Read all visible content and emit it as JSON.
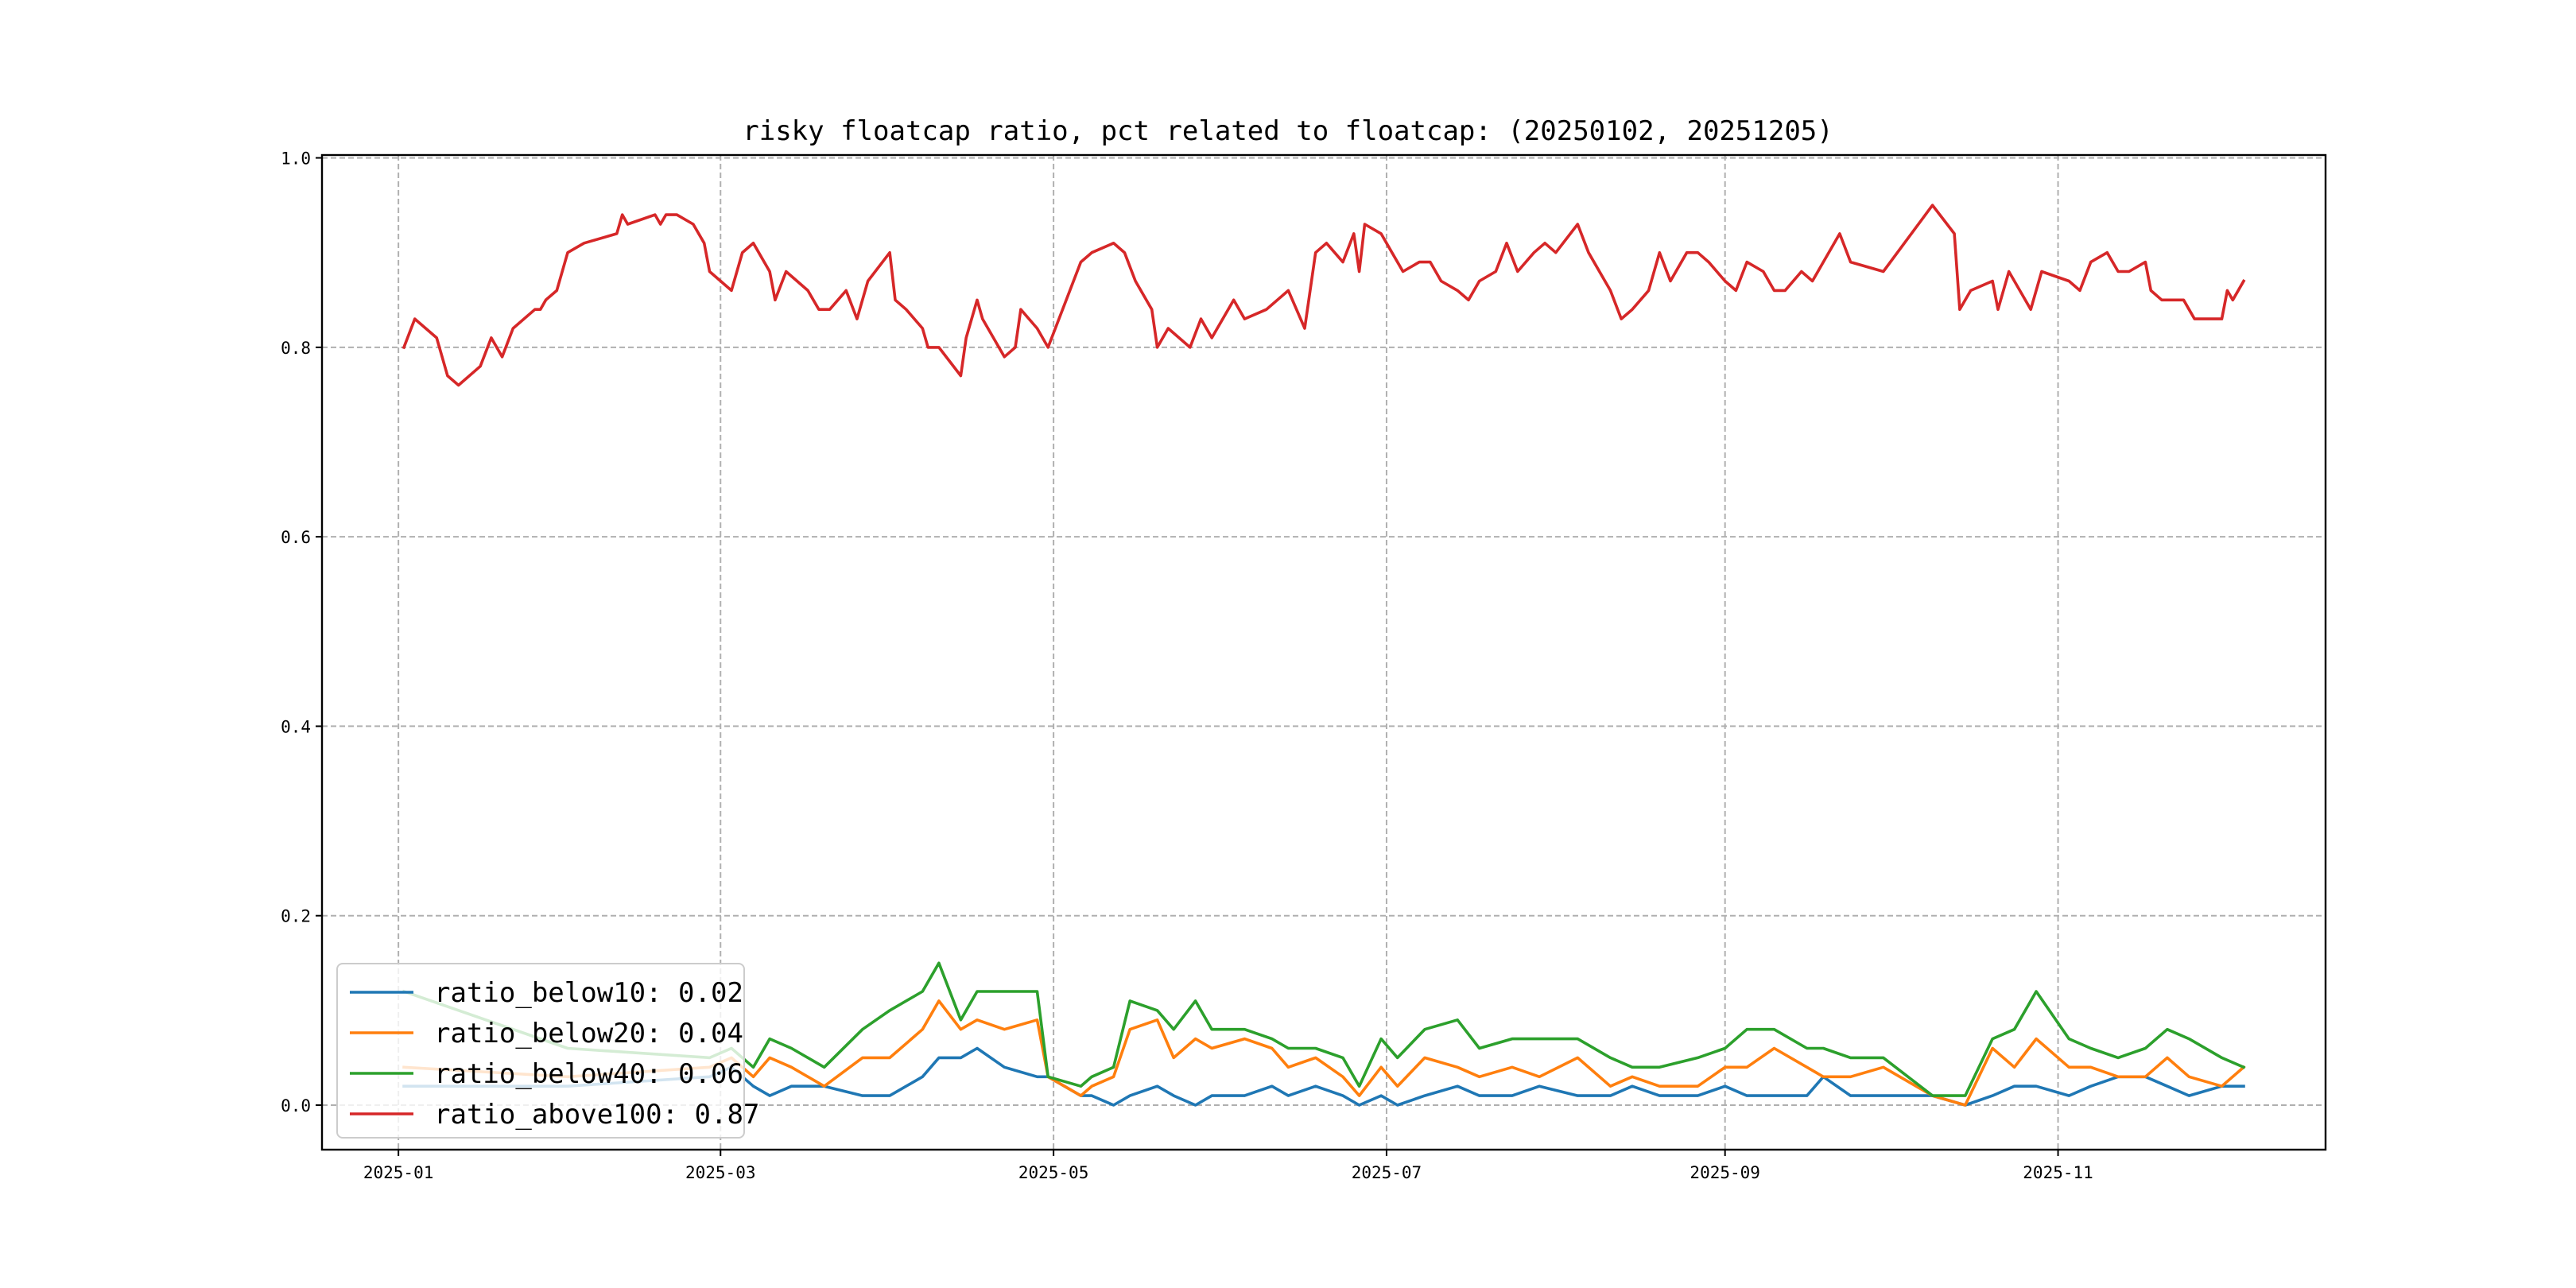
{
  "chart_data": {
    "type": "line",
    "title": "risky floatcap ratio, pct related to floatcap: (20250102, 20251205)",
    "xlabel": "",
    "ylabel": "",
    "x_type": "date",
    "xlim": [
      "2024-12-18",
      "2025-12-20"
    ],
    "ylim": [
      -0.047,
      1.003
    ],
    "x_ticks": [
      "2025-01-01",
      "2025-03-01",
      "2025-05-01",
      "2025-07-01",
      "2025-09-01",
      "2025-11-01"
    ],
    "x_tick_labels": [
      "2025-01",
      "2025-03",
      "2025-05",
      "2025-07",
      "2025-09",
      "2025-11"
    ],
    "y_ticks": [
      0.0,
      0.2,
      0.4,
      0.6,
      0.8,
      1.0
    ],
    "y_tick_labels": [
      "0.0",
      "0.2",
      "0.4",
      "0.6",
      "0.8",
      "1.0"
    ],
    "grid": true,
    "legend_position": "lower-left",
    "series": [
      {
        "name": "ratio_below10: 0.02",
        "color": "#1f77b4",
        "x": [
          "2025-01-02",
          "2025-02-01",
          "2025-02-27",
          "2025-03-03",
          "2025-03-07",
          "2025-03-10",
          "2025-03-14",
          "2025-03-20",
          "2025-03-27",
          "2025-04-01",
          "2025-04-07",
          "2025-04-10",
          "2025-04-14",
          "2025-04-17",
          "2025-04-22",
          "2025-04-28",
          "2025-04-30",
          "2025-05-06",
          "2025-05-08",
          "2025-05-12",
          "2025-05-15",
          "2025-05-20",
          "2025-05-23",
          "2025-05-27",
          "2025-05-30",
          "2025-06-05",
          "2025-06-10",
          "2025-06-13",
          "2025-06-18",
          "2025-06-23",
          "2025-06-26",
          "2025-06-30",
          "2025-07-03",
          "2025-07-08",
          "2025-07-14",
          "2025-07-18",
          "2025-07-24",
          "2025-07-29",
          "2025-08-05",
          "2025-08-11",
          "2025-08-15",
          "2025-08-20",
          "2025-08-27",
          "2025-09-01",
          "2025-09-05",
          "2025-09-10",
          "2025-09-16",
          "2025-09-19",
          "2025-09-24",
          "2025-09-30",
          "2025-10-09",
          "2025-10-15",
          "2025-10-20",
          "2025-10-24",
          "2025-10-28",
          "2025-11-03",
          "2025-11-07",
          "2025-11-12",
          "2025-11-17",
          "2025-11-21",
          "2025-11-25",
          "2025-12-01",
          "2025-12-05"
        ],
        "values": [
          0.02,
          0.02,
          0.03,
          0.04,
          0.02,
          0.01,
          0.02,
          0.02,
          0.01,
          0.01,
          0.03,
          0.05,
          0.05,
          0.06,
          0.04,
          0.03,
          0.03,
          0.01,
          0.01,
          0.0,
          0.01,
          0.02,
          0.01,
          0.0,
          0.01,
          0.01,
          0.02,
          0.01,
          0.02,
          0.01,
          0.0,
          0.01,
          0.0,
          0.01,
          0.02,
          0.01,
          0.01,
          0.02,
          0.01,
          0.01,
          0.02,
          0.01,
          0.01,
          0.02,
          0.01,
          0.01,
          0.01,
          0.03,
          0.01,
          0.01,
          0.01,
          0.0,
          0.01,
          0.02,
          0.02,
          0.01,
          0.02,
          0.03,
          0.03,
          0.02,
          0.01,
          0.02,
          0.02
        ]
      },
      {
        "name": "ratio_below20: 0.04",
        "color": "#ff7f0e",
        "x": [
          "2025-01-02",
          "2025-02-01",
          "2025-02-27",
          "2025-03-03",
          "2025-03-07",
          "2025-03-10",
          "2025-03-14",
          "2025-03-20",
          "2025-03-27",
          "2025-04-01",
          "2025-04-07",
          "2025-04-10",
          "2025-04-14",
          "2025-04-17",
          "2025-04-22",
          "2025-04-28",
          "2025-04-30",
          "2025-05-06",
          "2025-05-08",
          "2025-05-12",
          "2025-05-15",
          "2025-05-20",
          "2025-05-23",
          "2025-05-27",
          "2025-05-30",
          "2025-06-05",
          "2025-06-10",
          "2025-06-13",
          "2025-06-18",
          "2025-06-23",
          "2025-06-26",
          "2025-06-30",
          "2025-07-03",
          "2025-07-08",
          "2025-07-14",
          "2025-07-18",
          "2025-07-24",
          "2025-07-29",
          "2025-08-05",
          "2025-08-11",
          "2025-08-15",
          "2025-08-20",
          "2025-08-27",
          "2025-09-01",
          "2025-09-05",
          "2025-09-10",
          "2025-09-16",
          "2025-09-19",
          "2025-09-24",
          "2025-09-30",
          "2025-10-09",
          "2025-10-15",
          "2025-10-20",
          "2025-10-24",
          "2025-10-28",
          "2025-11-03",
          "2025-11-07",
          "2025-11-12",
          "2025-11-17",
          "2025-11-21",
          "2025-11-25",
          "2025-12-01",
          "2025-12-05"
        ],
        "values": [
          0.04,
          0.03,
          0.04,
          0.05,
          0.03,
          0.05,
          0.04,
          0.02,
          0.05,
          0.05,
          0.08,
          0.11,
          0.08,
          0.09,
          0.08,
          0.09,
          0.03,
          0.01,
          0.02,
          0.03,
          0.08,
          0.09,
          0.05,
          0.07,
          0.06,
          0.07,
          0.06,
          0.04,
          0.05,
          0.03,
          0.01,
          0.04,
          0.02,
          0.05,
          0.04,
          0.03,
          0.04,
          0.03,
          0.05,
          0.02,
          0.03,
          0.02,
          0.02,
          0.04,
          0.04,
          0.06,
          0.04,
          0.03,
          0.03,
          0.04,
          0.01,
          0.0,
          0.06,
          0.04,
          0.07,
          0.04,
          0.04,
          0.03,
          0.03,
          0.05,
          0.03,
          0.02,
          0.04
        ]
      },
      {
        "name": "ratio_below40: 0.06",
        "color": "#2ca02c",
        "x": [
          "2025-01-02",
          "2025-02-01",
          "2025-02-27",
          "2025-03-03",
          "2025-03-07",
          "2025-03-10",
          "2025-03-14",
          "2025-03-20",
          "2025-03-27",
          "2025-04-01",
          "2025-04-07",
          "2025-04-10",
          "2025-04-14",
          "2025-04-17",
          "2025-04-22",
          "2025-04-28",
          "2025-04-30",
          "2025-05-06",
          "2025-05-08",
          "2025-05-12",
          "2025-05-15",
          "2025-05-20",
          "2025-05-23",
          "2025-05-27",
          "2025-05-30",
          "2025-06-05",
          "2025-06-10",
          "2025-06-13",
          "2025-06-18",
          "2025-06-23",
          "2025-06-26",
          "2025-06-30",
          "2025-07-03",
          "2025-07-08",
          "2025-07-14",
          "2025-07-18",
          "2025-07-24",
          "2025-07-29",
          "2025-08-05",
          "2025-08-11",
          "2025-08-15",
          "2025-08-20",
          "2025-08-27",
          "2025-09-01",
          "2025-09-05",
          "2025-09-10",
          "2025-09-16",
          "2025-09-19",
          "2025-09-24",
          "2025-09-30",
          "2025-10-09",
          "2025-10-15",
          "2025-10-20",
          "2025-10-24",
          "2025-10-28",
          "2025-11-03",
          "2025-11-07",
          "2025-11-12",
          "2025-11-17",
          "2025-11-21",
          "2025-11-25",
          "2025-12-01",
          "2025-12-05"
        ],
        "values": [
          0.12,
          0.06,
          0.05,
          0.06,
          0.04,
          0.07,
          0.06,
          0.04,
          0.08,
          0.1,
          0.12,
          0.15,
          0.09,
          0.12,
          0.12,
          0.12,
          0.03,
          0.02,
          0.03,
          0.04,
          0.11,
          0.1,
          0.08,
          0.11,
          0.08,
          0.08,
          0.07,
          0.06,
          0.06,
          0.05,
          0.02,
          0.07,
          0.05,
          0.08,
          0.09,
          0.06,
          0.07,
          0.07,
          0.07,
          0.05,
          0.04,
          0.04,
          0.05,
          0.06,
          0.08,
          0.08,
          0.06,
          0.06,
          0.05,
          0.05,
          0.01,
          0.01,
          0.07,
          0.08,
          0.12,
          0.07,
          0.06,
          0.05,
          0.06,
          0.08,
          0.07,
          0.05,
          0.04
        ]
      },
      {
        "name": "ratio_above100: 0.87",
        "color": "#d62728",
        "x": [
          "2025-01-02",
          "2025-01-04",
          "2025-01-08",
          "2025-01-10",
          "2025-01-12",
          "2025-01-16",
          "2025-01-18",
          "2025-01-20",
          "2025-01-22",
          "2025-01-26",
          "2025-01-27",
          "2025-01-28",
          "2025-01-30",
          "2025-02-01",
          "2025-02-04",
          "2025-02-10",
          "2025-02-11",
          "2025-02-12",
          "2025-02-17",
          "2025-02-18",
          "2025-02-19",
          "2025-02-21",
          "2025-02-24",
          "2025-02-26",
          "2025-02-27",
          "2025-03-03",
          "2025-03-05",
          "2025-03-07",
          "2025-03-10",
          "2025-03-11",
          "2025-03-13",
          "2025-03-17",
          "2025-03-19",
          "2025-03-21",
          "2025-03-24",
          "2025-03-26",
          "2025-03-28",
          "2025-04-01",
          "2025-04-02",
          "2025-04-04",
          "2025-04-07",
          "2025-04-08",
          "2025-04-10",
          "2025-04-14",
          "2025-04-15",
          "2025-04-17",
          "2025-04-18",
          "2025-04-21",
          "2025-04-22",
          "2025-04-24",
          "2025-04-25",
          "2025-04-28",
          "2025-04-30",
          "2025-05-06",
          "2025-05-08",
          "2025-05-12",
          "2025-05-14",
          "2025-05-16",
          "2025-05-19",
          "2025-05-20",
          "2025-05-22",
          "2025-05-26",
          "2025-05-28",
          "2025-05-30",
          "2025-06-03",
          "2025-06-05",
          "2025-06-09",
          "2025-06-11",
          "2025-06-13",
          "2025-06-16",
          "2025-06-18",
          "2025-06-20",
          "2025-06-23",
          "2025-06-25",
          "2025-06-26",
          "2025-06-27",
          "2025-06-30",
          "2025-07-02",
          "2025-07-04",
          "2025-07-07",
          "2025-07-09",
          "2025-07-11",
          "2025-07-14",
          "2025-07-16",
          "2025-07-18",
          "2025-07-21",
          "2025-07-23",
          "2025-07-25",
          "2025-07-28",
          "2025-07-30",
          "2025-08-01",
          "2025-08-05",
          "2025-08-07",
          "2025-08-11",
          "2025-08-13",
          "2025-08-15",
          "2025-08-18",
          "2025-08-20",
          "2025-08-22",
          "2025-08-25",
          "2025-08-27",
          "2025-08-29",
          "2025-09-01",
          "2025-09-03",
          "2025-09-05",
          "2025-09-08",
          "2025-09-10",
          "2025-09-12",
          "2025-09-15",
          "2025-09-17",
          "2025-09-19",
          "2025-09-22",
          "2025-09-24",
          "2025-09-30",
          "2025-10-09",
          "2025-10-13",
          "2025-10-14",
          "2025-10-16",
          "2025-10-20",
          "2025-10-21",
          "2025-10-23",
          "2025-10-27",
          "2025-10-29",
          "2025-11-03",
          "2025-11-05",
          "2025-11-07",
          "2025-11-10",
          "2025-11-12",
          "2025-11-14",
          "2025-11-17",
          "2025-11-18",
          "2025-11-20",
          "2025-11-24",
          "2025-11-25",
          "2025-11-26",
          "2025-12-01",
          "2025-12-02",
          "2025-12-03",
          "2025-12-05"
        ],
        "values": [
          0.8,
          0.83,
          0.81,
          0.77,
          0.76,
          0.78,
          0.81,
          0.79,
          0.82,
          0.84,
          0.84,
          0.85,
          0.86,
          0.9,
          0.91,
          0.92,
          0.94,
          0.93,
          0.94,
          0.93,
          0.94,
          0.94,
          0.93,
          0.91,
          0.88,
          0.86,
          0.9,
          0.91,
          0.88,
          0.85,
          0.88,
          0.86,
          0.84,
          0.84,
          0.86,
          0.83,
          0.87,
          0.9,
          0.85,
          0.84,
          0.82,
          0.8,
          0.8,
          0.77,
          0.81,
          0.85,
          0.83,
          0.8,
          0.79,
          0.8,
          0.84,
          0.82,
          0.8,
          0.89,
          0.9,
          0.91,
          0.9,
          0.87,
          0.84,
          0.8,
          0.82,
          0.8,
          0.83,
          0.81,
          0.85,
          0.83,
          0.84,
          0.85,
          0.86,
          0.82,
          0.9,
          0.91,
          0.89,
          0.92,
          0.88,
          0.93,
          0.92,
          0.9,
          0.88,
          0.89,
          0.89,
          0.87,
          0.86,
          0.85,
          0.87,
          0.88,
          0.91,
          0.88,
          0.9,
          0.91,
          0.9,
          0.93,
          0.9,
          0.86,
          0.83,
          0.84,
          0.86,
          0.9,
          0.87,
          0.9,
          0.9,
          0.89,
          0.87,
          0.86,
          0.89,
          0.88,
          0.86,
          0.86,
          0.88,
          0.87,
          0.89,
          0.92,
          0.89,
          0.88,
          0.95,
          0.92,
          0.84,
          0.86,
          0.87,
          0.84,
          0.88,
          0.84,
          0.88,
          0.87,
          0.86,
          0.89,
          0.9,
          0.88,
          0.88,
          0.89,
          0.86,
          0.85,
          0.85,
          0.84,
          0.83,
          0.83,
          0.86,
          0.85,
          0.87
        ]
      }
    ]
  }
}
